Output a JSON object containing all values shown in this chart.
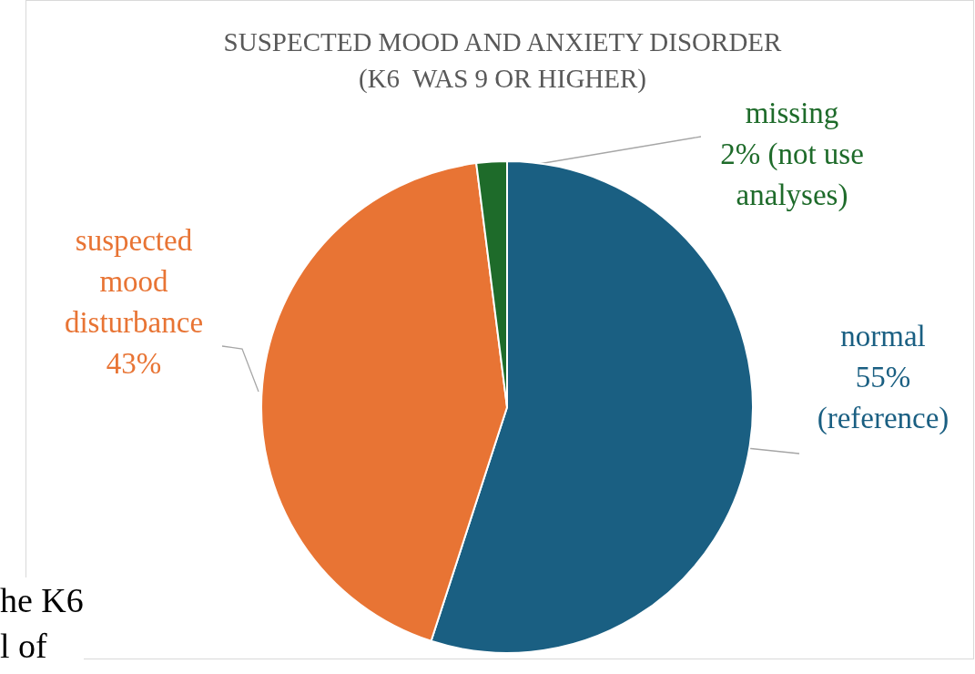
{
  "chart_data": {
    "type": "pie",
    "title": "SUSPECTED MOOD AND ANXIETY DISORDER (K6  WAS 9 OR HIGHER)",
    "categories": [
      "normal",
      "suspected mood disturbance",
      "missing"
    ],
    "values": [
      55,
      43,
      2
    ],
    "value_labels": [
      "55% (reference)",
      "43%",
      "2% (not use analyses)"
    ],
    "colors": [
      "#1a5f82",
      "#e87434",
      "#1e6b2a"
    ],
    "annotations": [
      "he K6",
      "l of"
    ]
  }
}
